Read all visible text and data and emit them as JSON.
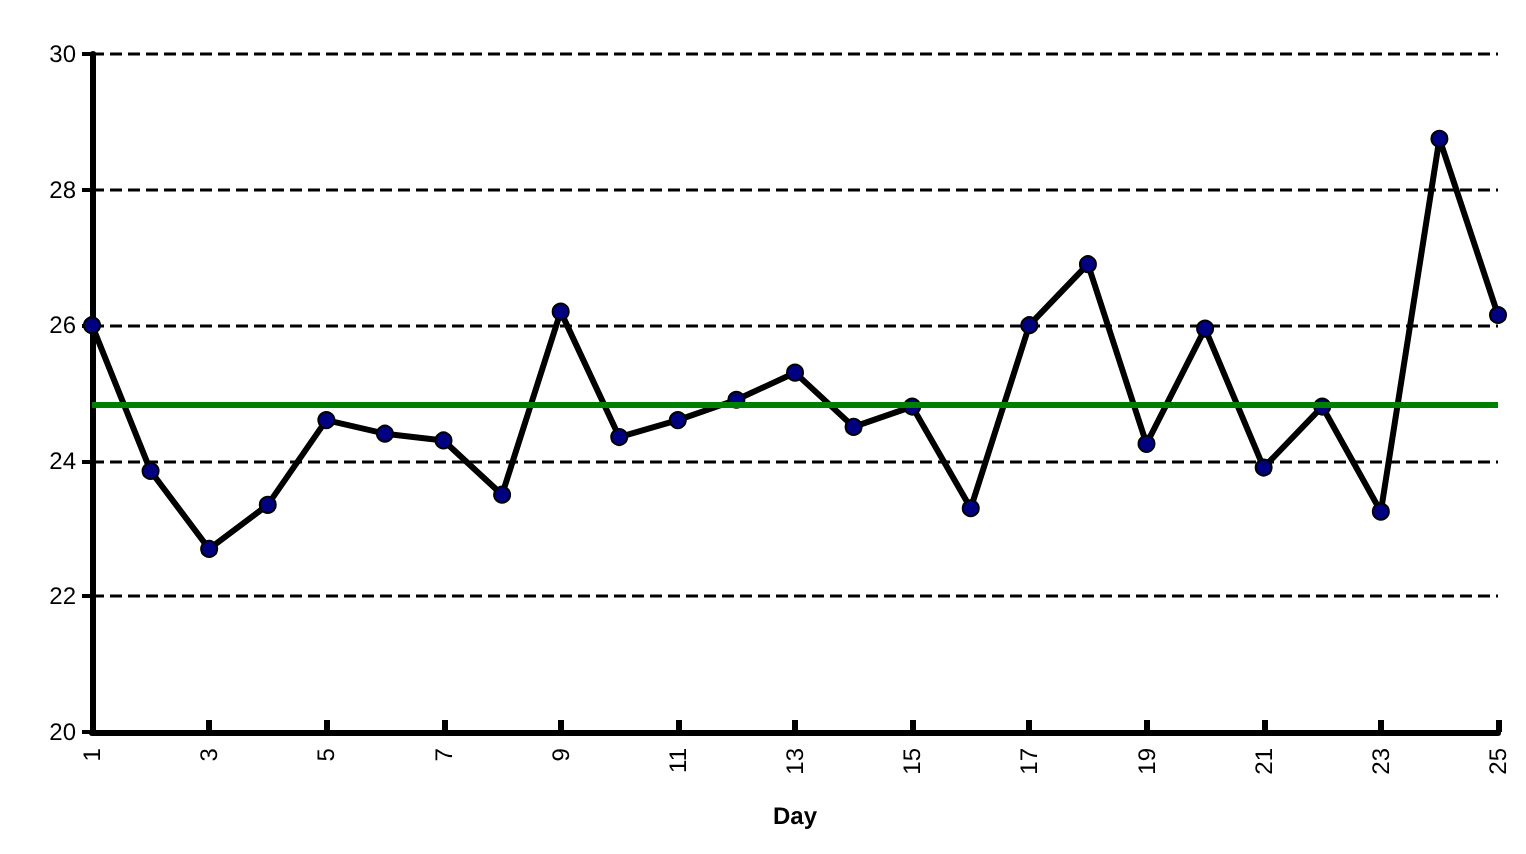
{
  "chart_data": {
    "type": "line",
    "xlabel": "Day",
    "x": [
      1,
      2,
      3,
      4,
      5,
      6,
      7,
      8,
      9,
      10,
      11,
      12,
      13,
      14,
      15,
      16,
      17,
      18,
      19,
      20,
      21,
      22,
      23,
      24,
      25
    ],
    "series": [
      {
        "color": "#000000",
        "values": [
          26.0,
          23.85,
          22.7,
          23.35,
          24.6,
          24.4,
          24.3,
          23.5,
          26.2,
          24.35,
          24.6,
          24.9,
          25.3,
          24.5,
          24.8,
          23.3,
          26.0,
          26.9,
          24.25,
          25.95,
          23.9,
          24.8,
          23.25,
          28.75,
          26.15
        ]
      }
    ],
    "xlim": [
      1,
      25
    ],
    "xticks": [
      1,
      3,
      5,
      7,
      9,
      11,
      13,
      15,
      17,
      19,
      21,
      23,
      25
    ],
    "ylim": [
      20,
      30
    ],
    "yticks": [
      20,
      22,
      24,
      26,
      28,
      30
    ],
    "ref_lines": [
      {
        "axis": "y",
        "value": 24.83,
        "color": "#008000",
        "line_style": "solid"
      }
    ],
    "grid": "y",
    "marker": "circle",
    "line_style": "solid"
  }
}
